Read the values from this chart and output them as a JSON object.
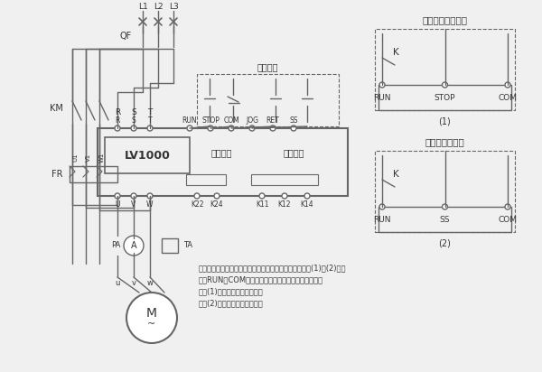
{
  "bg_color": "#f0f0f0",
  "line_color": "#666666",
  "text_color": "#333333",
  "title1": "二线控制自由停车",
  "title2": "二线控制软停车",
  "lv1000_label": "LV1000",
  "bypass_label": "旁路控制",
  "fault_label": "故障输出",
  "three_line_label": "三线控制",
  "note_line1": "注：软起动器的外控起动、停止也可以用二线控制《见图(1)和(2)》，",
  "note_line2": "利用RUN和COM的闭合和断开来控制软起动器的运行；",
  "note_line3": "按图(1)接线，停车为自由停。",
  "note_line4": "按图(2)接线，停车为软停车。"
}
